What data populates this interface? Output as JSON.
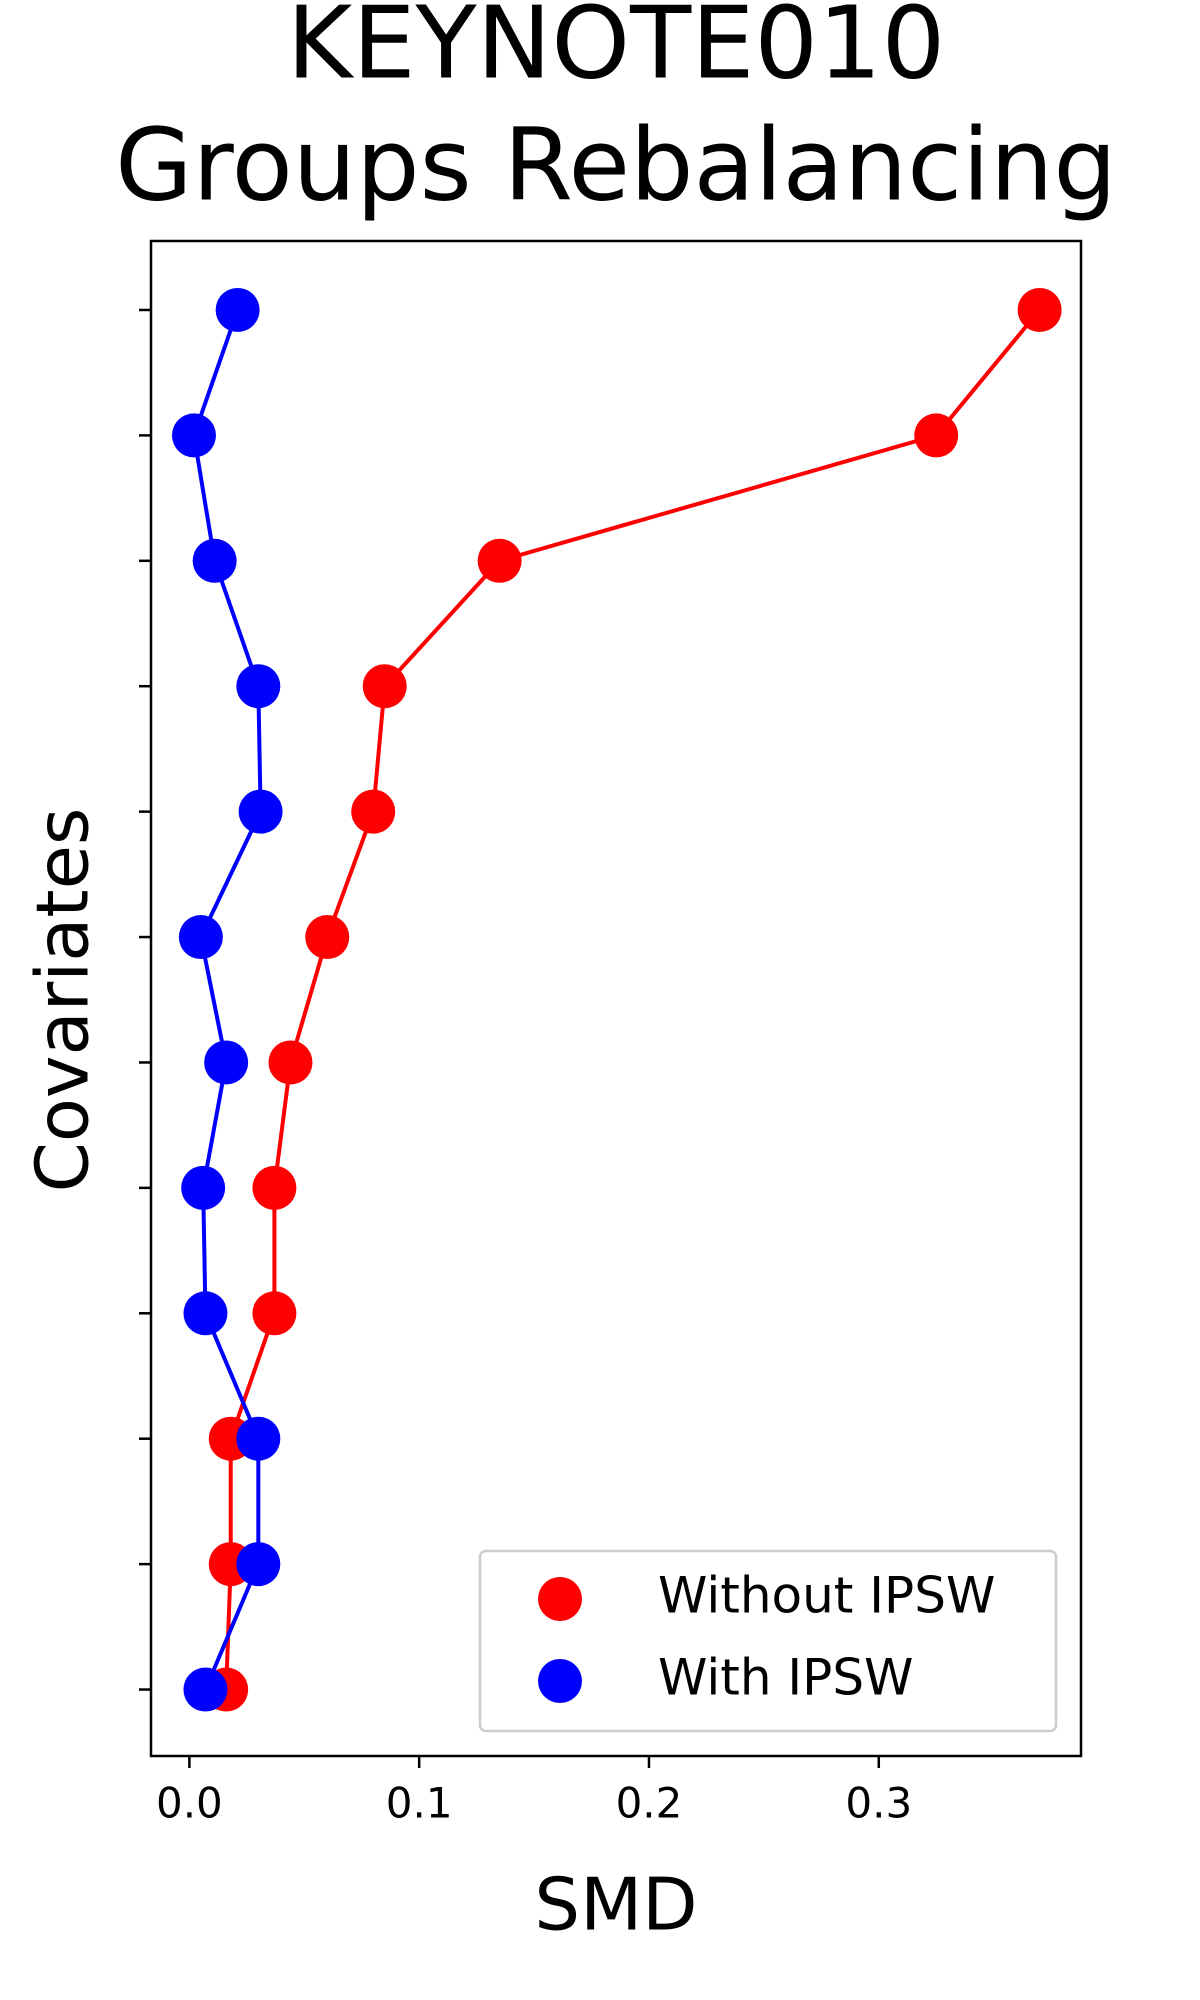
{
  "chart_data": {
    "type": "line",
    "orientation": "horizontal",
    "title": [
      "KEYNOTE010",
      "Groups Rebalancing"
    ],
    "x_label": "SMD",
    "y_label": "Covariates",
    "categories": [
      null,
      null,
      null,
      null,
      null,
      null,
      null,
      null,
      null,
      null,
      null,
      null
    ],
    "series": [
      {
        "name": "Without IPSW",
        "color": "#ff0000",
        "values": [
          0.016,
          0.018,
          0.018,
          0.037,
          0.037,
          0.044,
          0.06,
          0.08,
          0.085,
          0.135,
          0.325,
          0.37
        ]
      },
      {
        "name": "With IPSW",
        "color": "#0000ff",
        "values": [
          0.007,
          0.03,
          0.03,
          0.007,
          0.006,
          0.016,
          0.005,
          0.031,
          0.03,
          0.011,
          0.002,
          0.021
        ]
      }
    ],
    "xlim": [
      -0.0167,
      0.388
    ],
    "xticks": [
      {
        "value": 0,
        "label": "0.0"
      },
      0.1,
      0.2,
      0.3
    ],
    "grid": false,
    "legend": "lower right"
  }
}
